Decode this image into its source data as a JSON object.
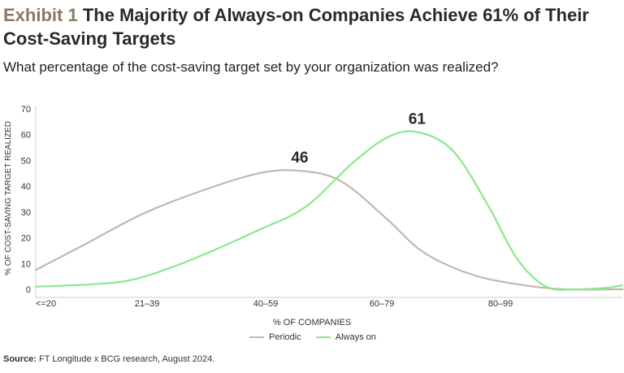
{
  "header": {
    "exhibit_label": "Exhibit 1",
    "title": "The Majority of Always-on Companies Achieve 61% of Their Cost-Saving Targets",
    "subtitle": "What percentage of the cost-saving target set by your organization was realized?"
  },
  "legend": {
    "periodic": "Periodic",
    "always_on": "Always on"
  },
  "source": {
    "label": "Source:",
    "text": "FT Longitude x BCG research, August 2024."
  },
  "colors": {
    "periodic": "#c3b8aa",
    "always_on": "#8be88b",
    "axis": "#cfcfcf",
    "text": "#333333"
  },
  "chart_data": {
    "type": "line",
    "title": "The Majority of Always-on Companies Achieve 61% of Their Cost-Saving Targets",
    "xlabel": "% OF COMPANIES",
    "ylabel": "% OF COST-SAVING TARGET REALIZED",
    "categories": [
      "<=20",
      "21–39",
      "40–59",
      "60–79",
      "80–99"
    ],
    "ylim": [
      0,
      70
    ],
    "yticks": [
      0,
      10,
      20,
      30,
      40,
      50,
      60,
      70
    ],
    "x_range": [
      0,
      5
    ],
    "series": [
      {
        "name": "Periodic",
        "color": "#c3b8aa",
        "points": [
          [
            0,
            7.5
          ],
          [
            0.4,
            17
          ],
          [
            0.9,
            29
          ],
          [
            1.4,
            38
          ],
          [
            1.9,
            45
          ],
          [
            2.25,
            46
          ],
          [
            2.6,
            42
          ],
          [
            3.0,
            27
          ],
          [
            3.3,
            14.5
          ],
          [
            3.7,
            6
          ],
          [
            4.1,
            2
          ],
          [
            4.5,
            0
          ],
          [
            4.95,
            0
          ],
          [
            5.0,
            0
          ]
        ],
        "peak_label": "46",
        "peak_x": 2.25
      },
      {
        "name": "Always on",
        "color": "#8be88b",
        "points": [
          [
            0,
            1
          ],
          [
            0.5,
            2
          ],
          [
            0.85,
            4
          ],
          [
            1.3,
            11
          ],
          [
            1.9,
            23
          ],
          [
            2.3,
            32
          ],
          [
            2.7,
            49
          ],
          [
            3.0,
            59
          ],
          [
            3.25,
            61
          ],
          [
            3.55,
            54
          ],
          [
            3.85,
            33
          ],
          [
            4.1,
            12
          ],
          [
            4.35,
            1
          ],
          [
            4.6,
            0
          ],
          [
            4.85,
            0.5
          ],
          [
            5.0,
            1.5
          ]
        ],
        "peak_label": "61",
        "peak_x": 3.25
      }
    ]
  }
}
